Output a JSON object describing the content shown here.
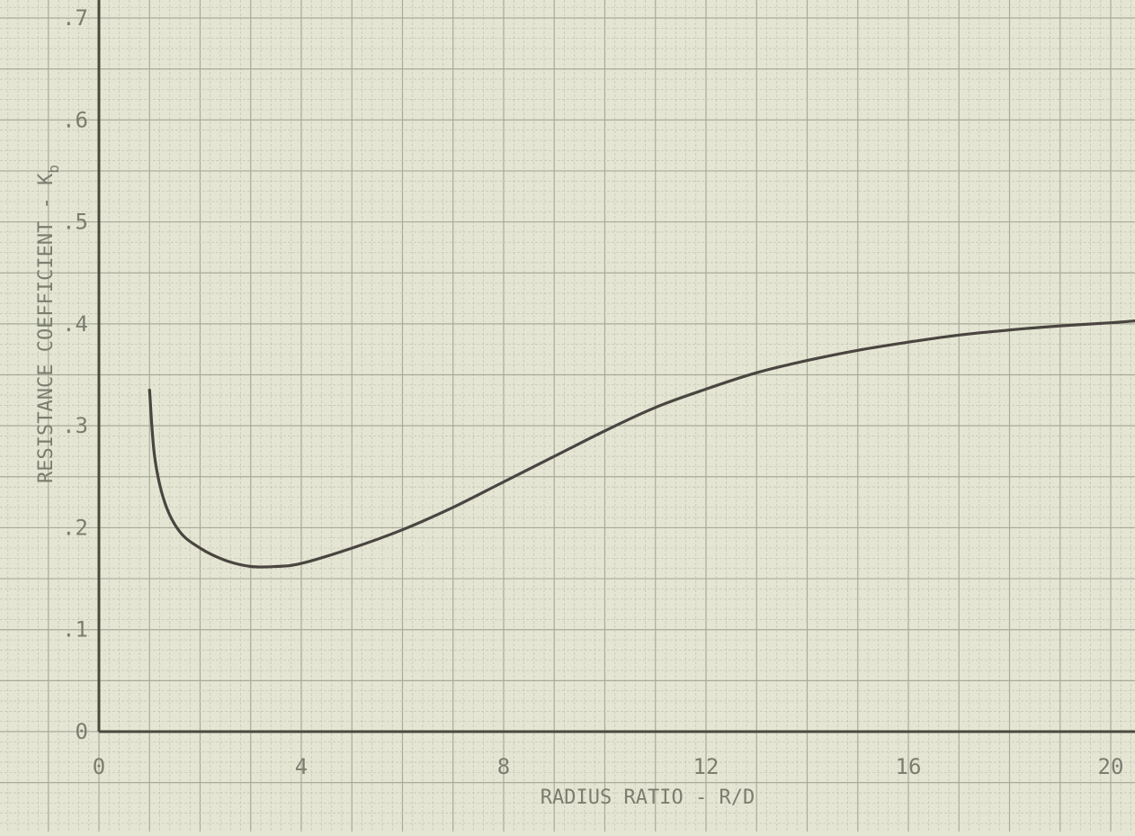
{
  "chart_data": {
    "type": "line",
    "title": "",
    "xlabel": "RADIUS RATIO - R/D",
    "ylabel": "RESISTANCE COEFFICIENT - K",
    "ylabel_subscript": "b",
    "xlim": [
      0,
      20
    ],
    "ylim": [
      0,
      0.7
    ],
    "x_ticks": [
      0,
      4,
      8,
      12,
      16,
      20
    ],
    "x_tick_labels": [
      "0",
      "4",
      "8",
      "12",
      "16",
      "20"
    ],
    "y_ticks": [
      0,
      0.1,
      0.2,
      0.3,
      0.4,
      0.5,
      0.6,
      0.7
    ],
    "y_tick_labels": [
      "0",
      ".1",
      ".2",
      ".3",
      ".4",
      ".5",
      ".6",
      ".7"
    ],
    "grid": true,
    "legend": "none",
    "series": [
      {
        "x": [
          1.0,
          1.1,
          1.3,
          1.6,
          2.0,
          2.5,
          3.0,
          3.5,
          4.0,
          5.0,
          6.0,
          7.0,
          8.0,
          9.0,
          10.0,
          11.0,
          12.0,
          13.0,
          14.0,
          15.0,
          16.0,
          17.0,
          18.0,
          19.0,
          20.0,
          20.5
        ],
        "y": [
          0.335,
          0.27,
          0.225,
          0.196,
          0.18,
          0.168,
          0.162,
          0.162,
          0.165,
          0.18,
          0.198,
          0.22,
          0.245,
          0.27,
          0.295,
          0.318,
          0.336,
          0.352,
          0.364,
          0.374,
          0.382,
          0.389,
          0.394,
          0.398,
          0.401,
          0.403
        ]
      }
    ]
  },
  "colors": {
    "background": "#e4e5d3",
    "grid_minor": "#c2c4b2",
    "grid_major": "#a9ab9a",
    "axis": "#4a4a3e",
    "curve": "#4a4540",
    "text": "#7b7d6f"
  }
}
